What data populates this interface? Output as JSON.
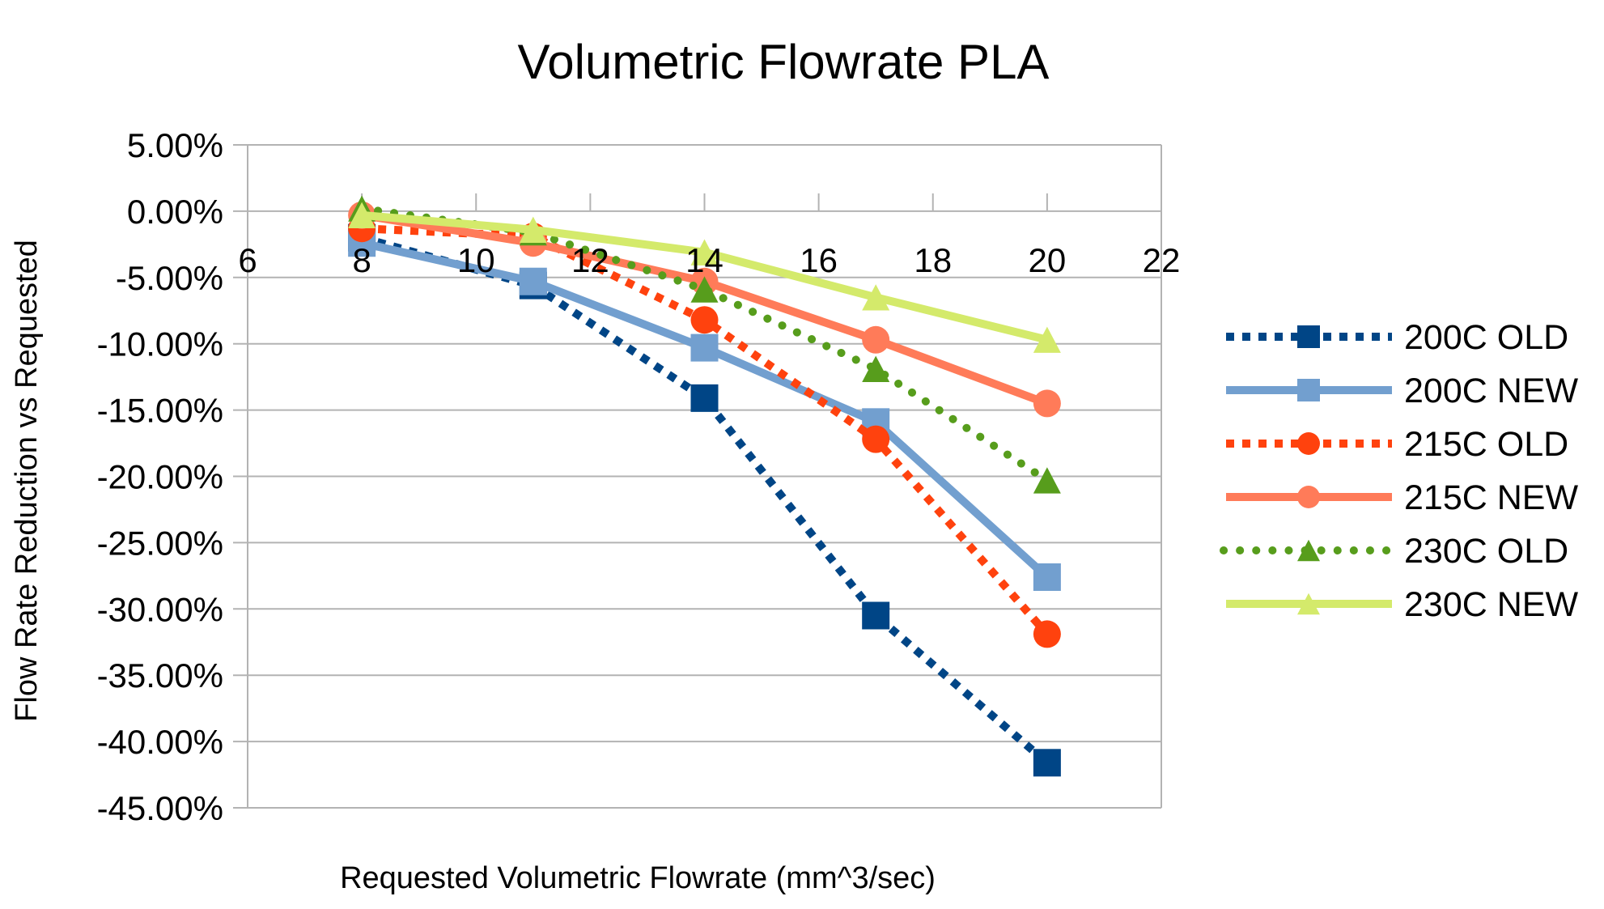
{
  "chart_data": {
    "type": "line",
    "title": "Volumetric Flowrate PLA",
    "xlabel": "Requested Volumetric Flowrate (mm^3/sec)",
    "ylabel": "Flow Rate Reduction vs Requested",
    "x": [
      8,
      11,
      14,
      17,
      20
    ],
    "xlim": [
      6,
      22
    ],
    "xticks": [
      6,
      8,
      10,
      12,
      14,
      16,
      18,
      20,
      22
    ],
    "ylim": [
      -45,
      5
    ],
    "yticks": [
      5,
      0,
      -5,
      -10,
      -15,
      -20,
      -25,
      -30,
      -35,
      -40,
      -45
    ],
    "ytick_labels": [
      "5.00%",
      "0.00%",
      "-5.00%",
      "-10.00%",
      "-15.00%",
      "-20.00%",
      "-25.00%",
      "-30.00%",
      "-35.00%",
      "-40.00%",
      "-45.00%"
    ],
    "y_unit": "percent",
    "grid": true,
    "legend_position": "right",
    "series": [
      {
        "name": "200C OLD",
        "color": "#004586",
        "line": "dotted-square",
        "marker": "square",
        "values": [
          -2.0,
          -5.6,
          -14.1,
          -30.5,
          -41.6
        ]
      },
      {
        "name": "200C NEW",
        "color": "#729fcf",
        "line": "solid",
        "marker": "square",
        "values": [
          -2.4,
          -5.3,
          -10.3,
          -15.9,
          -27.6
        ]
      },
      {
        "name": "215C OLD",
        "color": "#ff420e",
        "line": "dotted-square",
        "marker": "circle",
        "values": [
          -1.3,
          -1.9,
          -8.2,
          -17.2,
          -31.9
        ]
      },
      {
        "name": "215C NEW",
        "color": "#ff7b59",
        "line": "solid",
        "marker": "circle",
        "values": [
          -0.3,
          -2.4,
          -5.3,
          -9.7,
          -14.5
        ]
      },
      {
        "name": "230C OLD",
        "color": "#579d1c",
        "line": "dotted-round",
        "marker": "triangle",
        "values": [
          0.2,
          -1.6,
          -5.9,
          -11.9,
          -20.3
        ]
      },
      {
        "name": "230C NEW",
        "color": "#d4ea6b",
        "line": "solid",
        "marker": "triangle",
        "values": [
          -0.3,
          -1.4,
          -3.1,
          -6.5,
          -9.7
        ]
      }
    ]
  }
}
